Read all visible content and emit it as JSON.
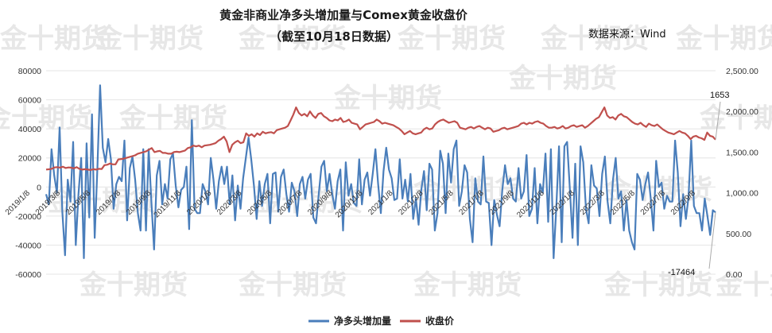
{
  "chart_data": {
    "type": "line",
    "title": "黄金非商业净多头增加量与Comex黄金收盘价",
    "subtitle": "（截至10月18日数据）",
    "source": "数据来源：Wind",
    "watermark": "金十期货",
    "y_left": {
      "ticks": [
        "80000",
        "60000",
        "40000",
        "20000",
        "0",
        "-20000",
        "-40000",
        "-60000"
      ],
      "range": [
        -60000,
        80000
      ]
    },
    "y_right": {
      "ticks": [
        "2,500.00",
        "2,000.00",
        "1,500.00",
        "1,000.00",
        "500.00",
        "0.00"
      ],
      "range": [
        0,
        2500
      ]
    },
    "x_ticks": [
      "2019/1/8",
      "2019/3/8",
      "2019/5/8",
      "2019/7/8",
      "2019/9/8",
      "2019/11/8",
      "2020/1/8",
      "2020/3/8",
      "2020/5/8",
      "2020/7/8",
      "2020/9/8",
      "2020/11/8",
      "2021/1/8",
      "2021/3/8",
      "2021/5/8",
      "2021/7/8",
      "2021/9/8",
      "2021/11/8",
      "2022/1/8",
      "2022/3/8",
      "2022/5/8",
      "2022/7/8",
      "2022/9/8"
    ],
    "annotations": [
      "1653",
      "-17464"
    ],
    "series": [
      {
        "name": "净多头增加量",
        "axis": "left",
        "color": "#4a7ebb",
        "values": [
          -5000,
          -12000,
          26000,
          8000,
          -4000,
          41000,
          -17000,
          -47000,
          5000,
          -10000,
          31000,
          -40000,
          -5000,
          20000,
          -49000,
          30000,
          -21000,
          50000,
          -35000,
          13000,
          70000,
          27000,
          17000,
          33000,
          19000,
          -15000,
          2000,
          7000,
          4000,
          32000,
          -23000,
          13000,
          21000,
          5000,
          -18000,
          -30000,
          26000,
          -30000,
          26000,
          -10000,
          -43000,
          8000,
          18000,
          -12000,
          2000,
          -8000,
          19000,
          23000,
          1000,
          -14000,
          -2000,
          0,
          14000,
          -29000,
          46000,
          -15000,
          -18000,
          -18000,
          2000,
          -3000,
          -12000,
          20000,
          5000,
          -15000,
          4000,
          14000,
          2000,
          14000,
          -12000,
          8000,
          -23000,
          1000,
          -15000,
          6000,
          20000,
          34000,
          19000,
          1000,
          -22000,
          4000,
          -13000,
          2000,
          9000,
          -25000,
          9000,
          10000,
          -17000,
          7000,
          12000,
          -5000,
          -17000,
          3000,
          -3000,
          -20000,
          2000,
          7000,
          -8000,
          5000,
          9000,
          -21000,
          -25000,
          -5000,
          14000,
          18000,
          -3000,
          9000,
          -5000,
          -15000,
          4000,
          12000,
          -30000,
          17000,
          -6000,
          2000,
          -11000,
          -13000,
          19000,
          -12000,
          5000,
          10000,
          -6000,
          9000,
          26000,
          2000,
          -18000,
          11000,
          27000,
          12000,
          6000,
          -9000,
          -8000,
          19000,
          -8000,
          5000,
          -10000,
          9000,
          -22000,
          -8000,
          -26000,
          -2000,
          11000,
          -16000,
          16000,
          12000,
          -30000,
          -18000,
          25000,
          16000,
          -18000,
          23000,
          3000,
          26000,
          32000,
          -13000,
          -3000,
          15000,
          10000,
          -22000,
          -38000,
          6000,
          -10000,
          -12000,
          21000,
          -10000,
          -11000,
          -40000,
          -9000,
          -19000,
          -27000,
          -2000,
          15000,
          2000,
          6000,
          -8000,
          -10000,
          13000,
          -8000,
          -3000,
          22000,
          -20000,
          -15000,
          13000,
          -25000,
          2000,
          -4000,
          23000,
          -24000,
          26000,
          -49000,
          -14000,
          28000,
          -38000,
          28000,
          31000,
          -1000,
          -35000,
          16000,
          -40000,
          28000,
          17000,
          -15000,
          -25000,
          15000,
          1000,
          -1000,
          -20000,
          9000,
          21000,
          -10000,
          -25000,
          5000,
          20000,
          -8000,
          -3000,
          -30000,
          -9000,
          -30000,
          -38000,
          -43000,
          9000,
          5000,
          -9000,
          2000,
          10000,
          -8000,
          -30000,
          18000,
          0,
          3000,
          -15000,
          -6000,
          -10000,
          -10000,
          32000,
          10000,
          -27000,
          -5000,
          -22000,
          -7000,
          32000,
          -13000,
          -18000,
          -18000,
          -30000,
          -8000,
          -20000,
          -33000,
          -16000,
          -17464
        ]
      },
      {
        "name": "收盘价",
        "axis": "right",
        "color": "#c0504d",
        "values": [
          1286,
          1289,
          1295,
          1312,
          1315,
          1310,
          1320,
          1305,
          1312,
          1310,
          1300,
          1315,
          1295,
          1285,
          1290,
          1285,
          1280,
          1290,
          1285,
          1295,
          1292,
          1340,
          1345,
          1360,
          1350,
          1350,
          1410,
          1415,
          1420,
          1430,
          1440,
          1450,
          1460,
          1480,
          1490,
          1500,
          1510,
          1530,
          1550,
          1500,
          1510,
          1515,
          1490,
          1490,
          1480,
          1480,
          1500,
          1505,
          1500,
          1510,
          1520,
          1550,
          1560,
          1580,
          1570,
          1580,
          1560,
          1580,
          1585,
          1590,
          1600,
          1610,
          1640,
          1660,
          1690,
          1630,
          1500,
          1590,
          1620,
          1640,
          1610,
          1620,
          1730,
          1700,
          1720,
          1690,
          1730,
          1710,
          1750,
          1730,
          1740,
          1745,
          1730,
          1770,
          1780,
          1790,
          1800,
          1820,
          1890,
          1960,
          2050,
          1980,
          1950,
          1970,
          1940,
          2000,
          1950,
          1920,
          1970,
          1980,
          1940,
          1920,
          1890,
          1880,
          1900,
          1890,
          1920,
          1870,
          1880,
          1900,
          1860,
          1850,
          1840,
          1780,
          1810,
          1840,
          1850,
          1860,
          1870,
          1900,
          1880,
          1850,
          1860,
          1850,
          1840,
          1830,
          1810,
          1790,
          1760,
          1720,
          1740,
          1760,
          1730,
          1720,
          1730,
          1740,
          1780,
          1800,
          1780,
          1790,
          1840,
          1870,
          1890,
          1900,
          1880,
          1860,
          1870,
          1880,
          1860,
          1800,
          1790,
          1780,
          1800,
          1810,
          1790,
          1810,
          1820,
          1800,
          1780,
          1800,
          1790,
          1750,
          1760,
          1770,
          1790,
          1800,
          1780,
          1790,
          1800,
          1810,
          1820,
          1850,
          1860,
          1840,
          1860,
          1850,
          1870,
          1880,
          1860,
          1850,
          1820,
          1800,
          1800,
          1810,
          1790,
          1800,
          1820,
          1790,
          1800,
          1820,
          1830,
          1810,
          1820,
          1830,
          1800,
          1820,
          1850,
          1880,
          1910,
          1930,
          1990,
          2050,
          1950,
          1920,
          1930,
          1900,
          1950,
          1970,
          1940,
          1930,
          1900,
          1870,
          1850,
          1840,
          1860,
          1830,
          1810,
          1850,
          1830,
          1820,
          1840,
          1810,
          1780,
          1760,
          1740,
          1730,
          1720,
          1740,
          1760,
          1740,
          1730,
          1700,
          1660,
          1690,
          1700,
          1680,
          1670,
          1650,
          1740,
          1700,
          1690,
          1653
        ]
      }
    ]
  }
}
